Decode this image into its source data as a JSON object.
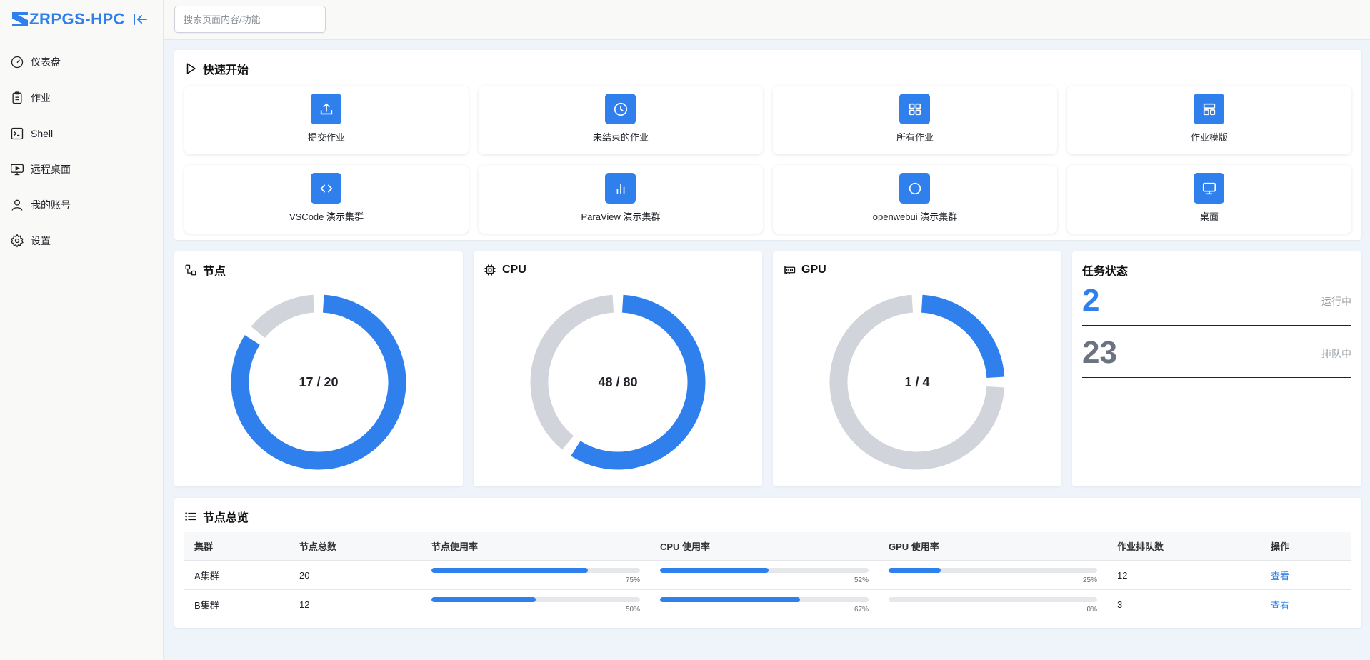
{
  "app": {
    "name": "ZRPGS-HPC"
  },
  "sidebar": {
    "items": [
      {
        "label": "仪表盘",
        "icon": "gauge-icon"
      },
      {
        "label": "作业",
        "icon": "clipboard-icon"
      },
      {
        "label": "Shell",
        "icon": "terminal-icon"
      },
      {
        "label": "远程桌面",
        "icon": "remote-desktop-icon"
      },
      {
        "label": "我的账号",
        "icon": "user-icon"
      },
      {
        "label": "设置",
        "icon": "gear-icon"
      }
    ]
  },
  "search": {
    "placeholder": "搜索页面内容/功能"
  },
  "quick_start": {
    "title": "快速开始",
    "tiles": [
      {
        "label": "提交作业",
        "icon": "upload-icon"
      },
      {
        "label": "未结束的作业",
        "icon": "clock-icon"
      },
      {
        "label": "所有作业",
        "icon": "grid-icon"
      },
      {
        "label": "作业模版",
        "icon": "layout-icon"
      },
      {
        "label": "VSCode 演示集群",
        "icon": "code-icon"
      },
      {
        "label": "ParaView 演示集群",
        "icon": "bar-chart-icon"
      },
      {
        "label": "openwebui 演示集群",
        "icon": "circle-icon"
      },
      {
        "label": "桌面",
        "icon": "monitor-icon"
      }
    ]
  },
  "gauges": [
    {
      "title": "节点",
      "icon": "nodes-icon",
      "used": 17,
      "total": 20,
      "text": "17 / 20"
    },
    {
      "title": "CPU",
      "icon": "cpu-icon",
      "used": 48,
      "total": 80,
      "text": "48 / 80"
    },
    {
      "title": "GPU",
      "icon": "gpu-icon",
      "used": 1,
      "total": 4,
      "text": "1 / 4"
    }
  ],
  "task_status": {
    "title": "任务状态",
    "running": {
      "count": "2",
      "label": "运行中"
    },
    "queued": {
      "count": "23",
      "label": "排队中"
    }
  },
  "node_overview": {
    "title": "节点总览",
    "columns": [
      "集群",
      "节点总数",
      "节点使用率",
      "CPU 使用率",
      "GPU 使用率",
      "作业排队数",
      "操作"
    ],
    "rows": [
      {
        "cluster": "A集群",
        "nodes": "20",
        "node_usage": 75,
        "node_usage_text": "75%",
        "cpu_usage": 52,
        "cpu_usage_text": "52%",
        "gpu_usage": 25,
        "gpu_usage_text": "25%",
        "queued": "12",
        "action": "查看"
      },
      {
        "cluster": "B集群",
        "nodes": "12",
        "node_usage": 50,
        "node_usage_text": "50%",
        "cpu_usage": 67,
        "cpu_usage_text": "67%",
        "gpu_usage": 0,
        "gpu_usage_text": "0%",
        "queued": "3",
        "action": "查看"
      }
    ]
  },
  "colors": {
    "accent": "#2f80ed",
    "track": "#d1d5db",
    "queued": "#6b7280"
  }
}
